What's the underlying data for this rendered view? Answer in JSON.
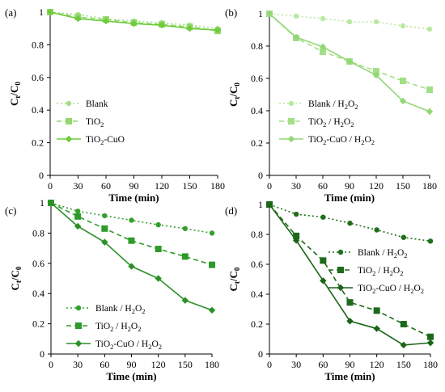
{
  "figure": {
    "panels": [
      {
        "label": "(a)",
        "ylabel_main": "C",
        "ylabel_sub": "t",
        "ylabel_sep": "/C",
        "ylabel_sub2": "0",
        "xlabel": "Time (min)"
      },
      {
        "label": "(b)",
        "ylabel_main": "C",
        "ylabel_sub": "t",
        "ylabel_sep": "/C",
        "ylabel_sub2": "0",
        "xlabel": "Time (min)"
      },
      {
        "label": "(c)",
        "ylabel_main": "C",
        "ylabel_sub": "t",
        "ylabel_sep": "/C",
        "ylabel_sub2": "0",
        "xlabel": "Time (min)"
      },
      {
        "label": "(d)",
        "ylabel_main": "C",
        "ylabel_sub": "t",
        "ylabel_sep": "/C",
        "ylabel_sub2": "0",
        "xlabel": "Time (min)"
      }
    ]
  },
  "chart_data": [
    {
      "type": "line",
      "panel": "(a)",
      "xlabel": "Time (min)",
      "ylabel": "Ct/C0",
      "x": [
        0,
        30,
        60,
        90,
        120,
        150,
        180
      ],
      "xlim": [
        0,
        180
      ],
      "ylim": [
        0,
        1
      ],
      "yticks": [
        0,
        0.2,
        0.4,
        0.6,
        0.8,
        1
      ],
      "ytick_labels": [
        "0",
        "0.2",
        "0.4",
        "0.6",
        "0.8",
        "1"
      ],
      "xtick_labels": [
        "0",
        "30",
        "60",
        "90",
        "120",
        "150",
        "180"
      ],
      "legend_position": "bottom-left",
      "series": [
        {
          "name": "Blank",
          "legend": [
            "Blank"
          ],
          "color": "#a6df8a",
          "style": "dotted",
          "marker": "circle",
          "values": [
            1.0,
            0.985,
            0.96,
            0.945,
            0.935,
            0.92,
            0.9
          ]
        },
        {
          "name": "TiO2",
          "legend": [
            "TiO",
            "2",
            ""
          ],
          "color": "#92d86e",
          "style": "dashed",
          "marker": "square",
          "values": [
            1.0,
            0.97,
            0.955,
            0.935,
            0.925,
            0.91,
            0.885
          ]
        },
        {
          "name": "TiO2-CuO",
          "legend": [
            "TiO",
            "2",
            "-CuO"
          ],
          "color": "#6fcb3c",
          "style": "solid",
          "marker": "diamond",
          "values": [
            1.0,
            0.96,
            0.945,
            0.93,
            0.92,
            0.9,
            0.89
          ]
        }
      ]
    },
    {
      "type": "line",
      "panel": "(b)",
      "xlabel": "Time (min)",
      "ylabel": "Ct/C0",
      "x": [
        0,
        30,
        60,
        90,
        120,
        150,
        180
      ],
      "xlim": [
        0,
        180
      ],
      "ylim": [
        0,
        1
      ],
      "yticks": [
        0,
        0.2,
        0.4,
        0.6,
        0.8,
        1
      ],
      "ytick_labels": [
        "0",
        "0.2",
        "0.4",
        "0.6",
        "0.8",
        "1"
      ],
      "xtick_labels": [
        "0",
        "30",
        "60",
        "90",
        "120",
        "150",
        "180"
      ],
      "legend_position": "bottom-left",
      "series": [
        {
          "name": "Blank / H2O2",
          "legend": [
            "Blank / H",
            "2",
            "O",
            "2"
          ],
          "color": "#b9e8a2",
          "style": "dotted",
          "marker": "circle",
          "values": [
            1.0,
            0.985,
            0.97,
            0.95,
            0.95,
            0.925,
            0.905
          ]
        },
        {
          "name": "TiO2 / H2O2",
          "legend": [
            "TiO",
            "2",
            " / H",
            "2",
            "O",
            "2"
          ],
          "color": "#a2df86",
          "style": "dashed",
          "marker": "square",
          "values": [
            1.0,
            0.85,
            0.765,
            0.705,
            0.645,
            0.585,
            0.53
          ]
        },
        {
          "name": "TiO2-CuO / H2O2",
          "legend": [
            "TiO",
            "2",
            "-CuO / H",
            "2",
            "O",
            "2"
          ],
          "color": "#93d775",
          "style": "solid",
          "marker": "diamond",
          "values": [
            1.0,
            0.855,
            0.795,
            0.705,
            0.62,
            0.46,
            0.395
          ]
        }
      ]
    },
    {
      "type": "line",
      "panel": "(c)",
      "xlabel": "Time (min)",
      "ylabel": "Ct/C0",
      "x": [
        0,
        30,
        60,
        90,
        120,
        150,
        180
      ],
      "xlim": [
        0,
        180
      ],
      "ylim": [
        0,
        1
      ],
      "yticks": [
        0,
        0.2,
        0.4,
        0.6,
        0.8,
        1
      ],
      "ytick_labels": [
        "0",
        "0.2",
        "0.4",
        "0.6",
        "0.8",
        "1"
      ],
      "xtick_labels": [
        "0",
        "30",
        "60",
        "90",
        "120",
        "150",
        "180"
      ],
      "legend_position": "bottom-left",
      "series": [
        {
          "name": "Blank / H2O2",
          "legend": [
            "Blank / H",
            "2",
            "O",
            "2"
          ],
          "color": "#34a02c",
          "style": "dotted",
          "marker": "circle",
          "values": [
            1.0,
            0.945,
            0.915,
            0.885,
            0.855,
            0.83,
            0.8
          ]
        },
        {
          "name": "TiO2 / H2O2",
          "legend": [
            "TiO",
            "2",
            " / H",
            "2",
            "O",
            "2"
          ],
          "color": "#2f9a29",
          "style": "dashed",
          "marker": "square",
          "values": [
            1.0,
            0.91,
            0.83,
            0.75,
            0.695,
            0.645,
            0.59
          ]
        },
        {
          "name": "TiO2-CuO / H2O2",
          "legend": [
            "TiO",
            "2",
            "-CuO / H",
            "2",
            "O",
            "2"
          ],
          "color": "#2a9126",
          "style": "solid",
          "marker": "diamond",
          "values": [
            1.0,
            0.845,
            0.74,
            0.58,
            0.5,
            0.355,
            0.29
          ]
        }
      ]
    },
    {
      "type": "line",
      "panel": "(d)",
      "xlabel": "Time (min)",
      "ylabel": "Ct/C0",
      "x": [
        0,
        30,
        60,
        90,
        120,
        150,
        180
      ],
      "xlim": [
        0,
        180
      ],
      "ylim": [
        0,
        1
      ],
      "yticks": [
        0,
        0.2,
        0.4,
        0.6,
        0.8,
        1
      ],
      "ytick_labels": [
        "0",
        "0.2",
        "0.4",
        "0.6",
        "0.8",
        "1"
      ],
      "xtick_labels": [
        "0",
        "30",
        "60",
        "90",
        "120",
        "150",
        "180"
      ],
      "legend_position": "top-right",
      "series": [
        {
          "name": "Blank / H2O2",
          "legend": [
            "Blank / H",
            "2",
            "O",
            "2"
          ],
          "color": "#1f6f1c",
          "style": "dotted",
          "marker": "circle",
          "values": [
            1.0,
            0.935,
            0.915,
            0.875,
            0.83,
            0.78,
            0.755
          ]
        },
        {
          "name": "TiO2 / H2O2",
          "legend": [
            "TiO",
            "2",
            " / H",
            "2",
            "O",
            "2"
          ],
          "color": "#1d6a1a",
          "style": "dashed",
          "marker": "square",
          "values": [
            1.0,
            0.79,
            0.625,
            0.345,
            0.29,
            0.2,
            0.115
          ]
        },
        {
          "name": "TiO2-CuO / H2O2",
          "legend": [
            "TiO",
            "2",
            "-CuO / H",
            "2",
            "O",
            "2"
          ],
          "color": "#1b6418",
          "style": "solid",
          "marker": "diamond",
          "values": [
            1.0,
            0.76,
            0.49,
            0.22,
            0.17,
            0.06,
            0.075
          ]
        }
      ]
    }
  ]
}
